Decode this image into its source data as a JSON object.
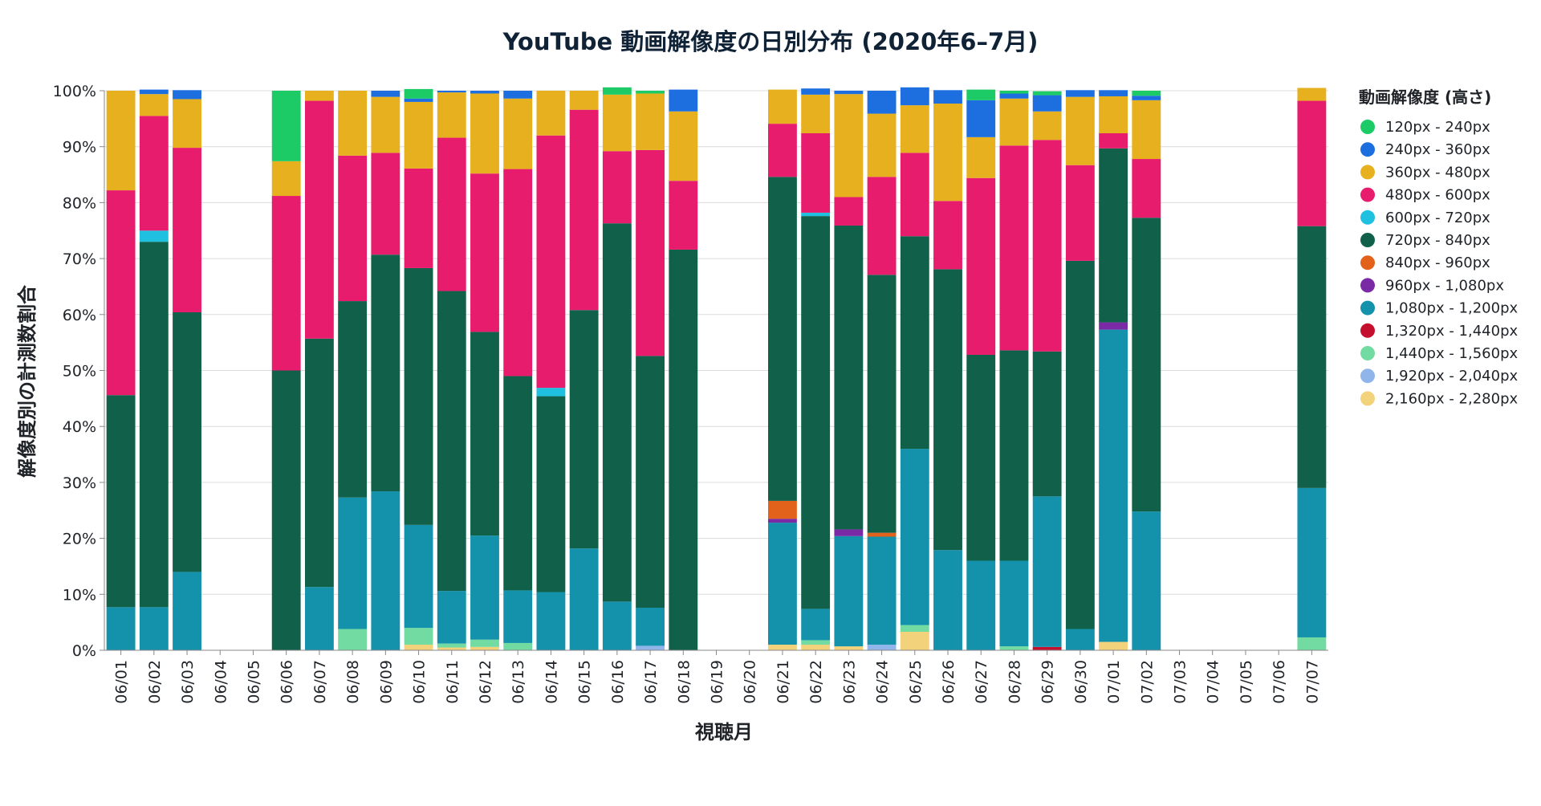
{
  "chart_data": {
    "type": "bar",
    "stacked": true,
    "normalized": true,
    "title": "YouTube 動画解像度の日別分布 (2020年6–7月)",
    "xlabel": "視聴月",
    "ylabel": "解像度別の計測数割合",
    "ylim": [
      0,
      100
    ],
    "y_ticks": [
      "0%",
      "10%",
      "20%",
      "30%",
      "40%",
      "50%",
      "60%",
      "70%",
      "80%",
      "90%",
      "100%"
    ],
    "grid": true,
    "legend_position": "right",
    "legend_title": "動画解像度 (高さ)",
    "categories": [
      "06/01",
      "06/02",
      "06/03",
      "06/04",
      "06/05",
      "06/06",
      "06/07",
      "06/08",
      "06/09",
      "06/10",
      "06/11",
      "06/12",
      "06/13",
      "06/14",
      "06/15",
      "06/16",
      "06/17",
      "06/18",
      "06/19",
      "06/20",
      "06/21",
      "06/22",
      "06/23",
      "06/24",
      "06/25",
      "06/26",
      "06/27",
      "06/28",
      "06/29",
      "06/30",
      "07/01",
      "07/02",
      "07/03",
      "07/04",
      "07/05",
      "07/06",
      "07/07"
    ],
    "series": [
      {
        "name": "2,160px - 2,280px",
        "color": "#f2d27a",
        "values": [
          0,
          0,
          0,
          0,
          0,
          0,
          0,
          0,
          0,
          1.0,
          0.5,
          0.6,
          0,
          0,
          0,
          0,
          0,
          0,
          0,
          0,
          1.0,
          1.0,
          0.7,
          0,
          3.3,
          0,
          0,
          0,
          0,
          0,
          1.5,
          0,
          0,
          0,
          0,
          0,
          0
        ]
      },
      {
        "name": "1,920px - 2,040px",
        "color": "#8fb5ea",
        "values": [
          0,
          0,
          0,
          0,
          0,
          0,
          0,
          0,
          0,
          0,
          0,
          0,
          0,
          0,
          0,
          0,
          0.8,
          0,
          0,
          0,
          0,
          0,
          0,
          1.0,
          0,
          0,
          0,
          0,
          0,
          0,
          0,
          0,
          0,
          0,
          0,
          0,
          0
        ]
      },
      {
        "name": "1,440px - 1,560px",
        "color": "#72dba2",
        "values": [
          0,
          0,
          0,
          0,
          0,
          0,
          0,
          3.8,
          0,
          3.0,
          0.7,
          1.3,
          1.3,
          0,
          0,
          0,
          0,
          0,
          0,
          0,
          0,
          0.8,
          0,
          0,
          1.2,
          0,
          0,
          0.7,
          0,
          0,
          0,
          0,
          0,
          0,
          0,
          0,
          2.3
        ]
      },
      {
        "name": "1,320px - 1,440px",
        "color": "#c4102e",
        "values": [
          0,
          0,
          0,
          0,
          0,
          0,
          0,
          0,
          0,
          0,
          0,
          0,
          0,
          0,
          0,
          0,
          0,
          0,
          0,
          0,
          0,
          0,
          0,
          0,
          0,
          0,
          0,
          0,
          0.6,
          0,
          0,
          0,
          0,
          0,
          0,
          0,
          0
        ]
      },
      {
        "name": "1,080px - 1,200px",
        "color": "#1492ab",
        "values": [
          7.7,
          7.7,
          14.0,
          0,
          0,
          0,
          11.3,
          23.5,
          28.4,
          18.4,
          9.4,
          18.6,
          9.4,
          10.4,
          18.2,
          8.7,
          6.8,
          0,
          0,
          0,
          21.8,
          5.6,
          19.7,
          19.3,
          31.5,
          17.9,
          16.0,
          15.3,
          26.9,
          3.8,
          55.8,
          24.8,
          0,
          0,
          0,
          0,
          26.7
        ]
      },
      {
        "name": "960px - 1,080px",
        "color": "#7b2aa6",
        "values": [
          0,
          0,
          0,
          0,
          0,
          0,
          0,
          0,
          0,
          0,
          0,
          0,
          0,
          0,
          0,
          0,
          0,
          0,
          0,
          0,
          0.7,
          0,
          1.2,
          0,
          0,
          0,
          0,
          0,
          0,
          0,
          1.3,
          0,
          0,
          0,
          0,
          0,
          0
        ]
      },
      {
        "name": "840px - 960px",
        "color": "#e2621b",
        "values": [
          0,
          0,
          0,
          0,
          0,
          0,
          0,
          0,
          0,
          0,
          0,
          0,
          0,
          0,
          0,
          0,
          0,
          0,
          0,
          0,
          3.2,
          0,
          0,
          0.7,
          0,
          0,
          0,
          0,
          0,
          0,
          0,
          0,
          0,
          0,
          0,
          0,
          0
        ]
      },
      {
        "name": "720px - 840px",
        "color": "#11604a",
        "values": [
          37.9,
          65.3,
          46.4,
          0,
          0,
          50.0,
          44.4,
          35.1,
          42.3,
          45.9,
          53.6,
          36.4,
          38.3,
          35.0,
          42.6,
          67.6,
          45.0,
          71.6,
          0,
          0,
          57.9,
          70.2,
          54.3,
          46.1,
          38.0,
          50.2,
          36.8,
          37.6,
          25.9,
          65.8,
          31.1,
          52.5,
          0,
          0,
          0,
          0,
          46.8
        ]
      },
      {
        "name": "600px - 720px",
        "color": "#1fc0e0",
        "values": [
          0,
          2.0,
          0,
          0,
          0,
          0,
          0,
          0,
          0,
          0,
          0,
          0,
          0,
          1.5,
          0,
          0,
          0,
          0,
          0,
          0,
          0,
          0.6,
          0,
          0,
          0,
          0,
          0,
          0,
          0,
          0,
          0,
          0,
          0,
          0,
          0,
          0,
          0
        ]
      },
      {
        "name": "480px - 600px",
        "color": "#e81c6c",
        "values": [
          36.6,
          20.5,
          29.4,
          0,
          0,
          31.2,
          42.5,
          26.0,
          18.2,
          17.8,
          27.4,
          28.3,
          37.0,
          45.1,
          35.8,
          12.9,
          36.8,
          12.3,
          0,
          0,
          9.5,
          14.2,
          5.1,
          17.5,
          14.9,
          12.2,
          31.6,
          36.6,
          37.8,
          17.1,
          2.7,
          10.5,
          0,
          0,
          0,
          0,
          22.4
        ]
      },
      {
        "name": "360px - 480px",
        "color": "#e6b01e",
        "values": [
          17.8,
          3.9,
          8.7,
          0,
          0,
          6.2,
          1.8,
          11.6,
          10.0,
          11.9,
          8.1,
          14.3,
          12.6,
          8.0,
          3.4,
          10.1,
          10.1,
          12.4,
          0,
          0,
          6.1,
          6.9,
          18.4,
          11.3,
          8.5,
          17.4,
          7.3,
          8.4,
          5.1,
          12.2,
          6.6,
          10.5,
          0,
          0,
          0,
          0,
          2.3
        ]
      },
      {
        "name": "240px - 360px",
        "color": "#1d6fe0",
        "values": [
          0,
          0.8,
          1.6,
          0,
          0,
          0,
          0,
          0,
          1.1,
          0.6,
          0.3,
          0.5,
          1.4,
          0,
          0,
          0,
          0,
          3.9,
          0,
          0,
          0,
          1.1,
          0.6,
          4.1,
          3.2,
          2.4,
          6.6,
          0.9,
          2.9,
          1.2,
          1.1,
          0.8,
          0,
          0,
          0,
          0,
          0
        ]
      },
      {
        "name": "120px - 240px",
        "color": "#1ccb66",
        "values": [
          0,
          0,
          0,
          0,
          0,
          12.6,
          0,
          0,
          0,
          1.7,
          0,
          0,
          0,
          0,
          0,
          1.3,
          0.5,
          0,
          0,
          0,
          0,
          0,
          0,
          0,
          0,
          0,
          1.9,
          0.5,
          0.7,
          0,
          0,
          0.9,
          0,
          0,
          0,
          0,
          0
        ]
      }
    ],
    "legend_order": [
      "120px - 240px",
      "240px - 360px",
      "360px - 480px",
      "480px - 600px",
      "600px - 720px",
      "720px - 840px",
      "840px - 960px",
      "960px - 1,080px",
      "1,080px - 1,200px",
      "1,320px - 1,440px",
      "1,440px - 1,560px",
      "1,920px - 2,040px",
      "2,160px - 2,280px"
    ]
  }
}
